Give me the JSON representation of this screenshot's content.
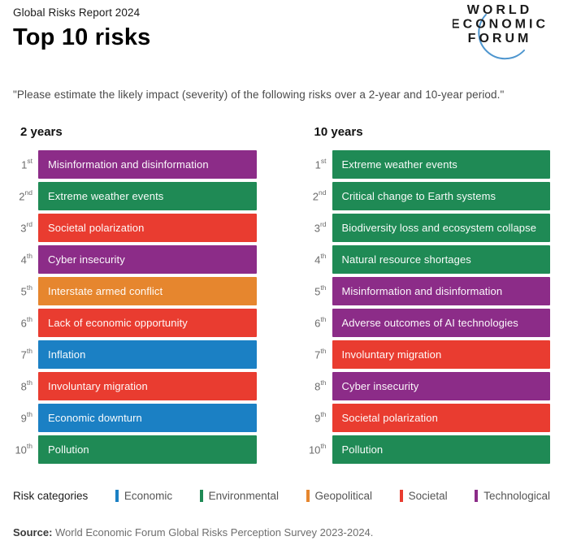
{
  "header": {
    "report_label": "Global Risks Report 2024",
    "title": "Top 10 risks",
    "logo": {
      "line1": "WORLD",
      "line2": "ECONOMIC",
      "line3": "FORUM",
      "arc_color": "#4e96cf",
      "text_color": "#1a1a1a"
    }
  },
  "subtitle": "\"Please estimate the likely impact (severity) of the following risks over a 2-year and 10-year period.\"",
  "chart_data": {
    "type": "table",
    "title": "Top 10 risks",
    "question": "Please estimate the likely impact (severity) of the following risks over a 2-year and 10-year period.",
    "category_colors": {
      "Economic": "#1b80c4",
      "Environmental": "#1f8a55",
      "Geopolitical": "#e6862e",
      "Societal": "#e93c30",
      "Technological": "#8c2c88"
    },
    "columns": [
      {
        "label": "2 years",
        "rows": [
          {
            "rank": "1",
            "ordinal": "st",
            "risk": "Misinformation and disinformation",
            "category": "Technological"
          },
          {
            "rank": "2",
            "ordinal": "nd",
            "risk": "Extreme weather events",
            "category": "Environmental"
          },
          {
            "rank": "3",
            "ordinal": "rd",
            "risk": "Societal polarization",
            "category": "Societal"
          },
          {
            "rank": "4",
            "ordinal": "th",
            "risk": "Cyber insecurity",
            "category": "Technological"
          },
          {
            "rank": "5",
            "ordinal": "th",
            "risk": "Interstate armed conflict",
            "category": "Geopolitical"
          },
          {
            "rank": "6",
            "ordinal": "th",
            "risk": "Lack of economic opportunity",
            "category": "Societal"
          },
          {
            "rank": "7",
            "ordinal": "th",
            "risk": "Inflation",
            "category": "Economic"
          },
          {
            "rank": "8",
            "ordinal": "th",
            "risk": "Involuntary migration",
            "category": "Societal"
          },
          {
            "rank": "9",
            "ordinal": "th",
            "risk": "Economic downturn",
            "category": "Economic"
          },
          {
            "rank": "10",
            "ordinal": "th",
            "risk": "Pollution",
            "category": "Environmental"
          }
        ]
      },
      {
        "label": "10 years",
        "rows": [
          {
            "rank": "1",
            "ordinal": "st",
            "risk": "Extreme weather events",
            "category": "Environmental"
          },
          {
            "rank": "2",
            "ordinal": "nd",
            "risk": "Critical change to Earth systems",
            "category": "Environmental"
          },
          {
            "rank": "3",
            "ordinal": "rd",
            "risk": "Biodiversity loss and ecosystem collapse",
            "category": "Environmental"
          },
          {
            "rank": "4",
            "ordinal": "th",
            "risk": "Natural resource shortages",
            "category": "Environmental"
          },
          {
            "rank": "5",
            "ordinal": "th",
            "risk": "Misinformation and disinformation",
            "category": "Technological"
          },
          {
            "rank": "6",
            "ordinal": "th",
            "risk": "Adverse outcomes of AI technologies",
            "category": "Technological"
          },
          {
            "rank": "7",
            "ordinal": "th",
            "risk": "Involuntary migration",
            "category": "Societal"
          },
          {
            "rank": "8",
            "ordinal": "th",
            "risk": "Cyber insecurity",
            "category": "Technological"
          },
          {
            "rank": "9",
            "ordinal": "th",
            "risk": "Societal polarization",
            "category": "Societal"
          },
          {
            "rank": "10",
            "ordinal": "th",
            "risk": "Pollution",
            "category": "Environmental"
          }
        ]
      }
    ]
  },
  "legend": {
    "label": "Risk categories",
    "items": [
      {
        "name": "Economic",
        "color": "#1b80c4"
      },
      {
        "name": "Environmental",
        "color": "#1f8a55"
      },
      {
        "name": "Geopolitical",
        "color": "#e6862e"
      },
      {
        "name": "Societal",
        "color": "#e93c30"
      },
      {
        "name": "Technological",
        "color": "#8c2c88"
      }
    ]
  },
  "source": {
    "label": "Source:",
    "text": " World Economic Forum Global Risks Perception Survey 2023-2024."
  }
}
